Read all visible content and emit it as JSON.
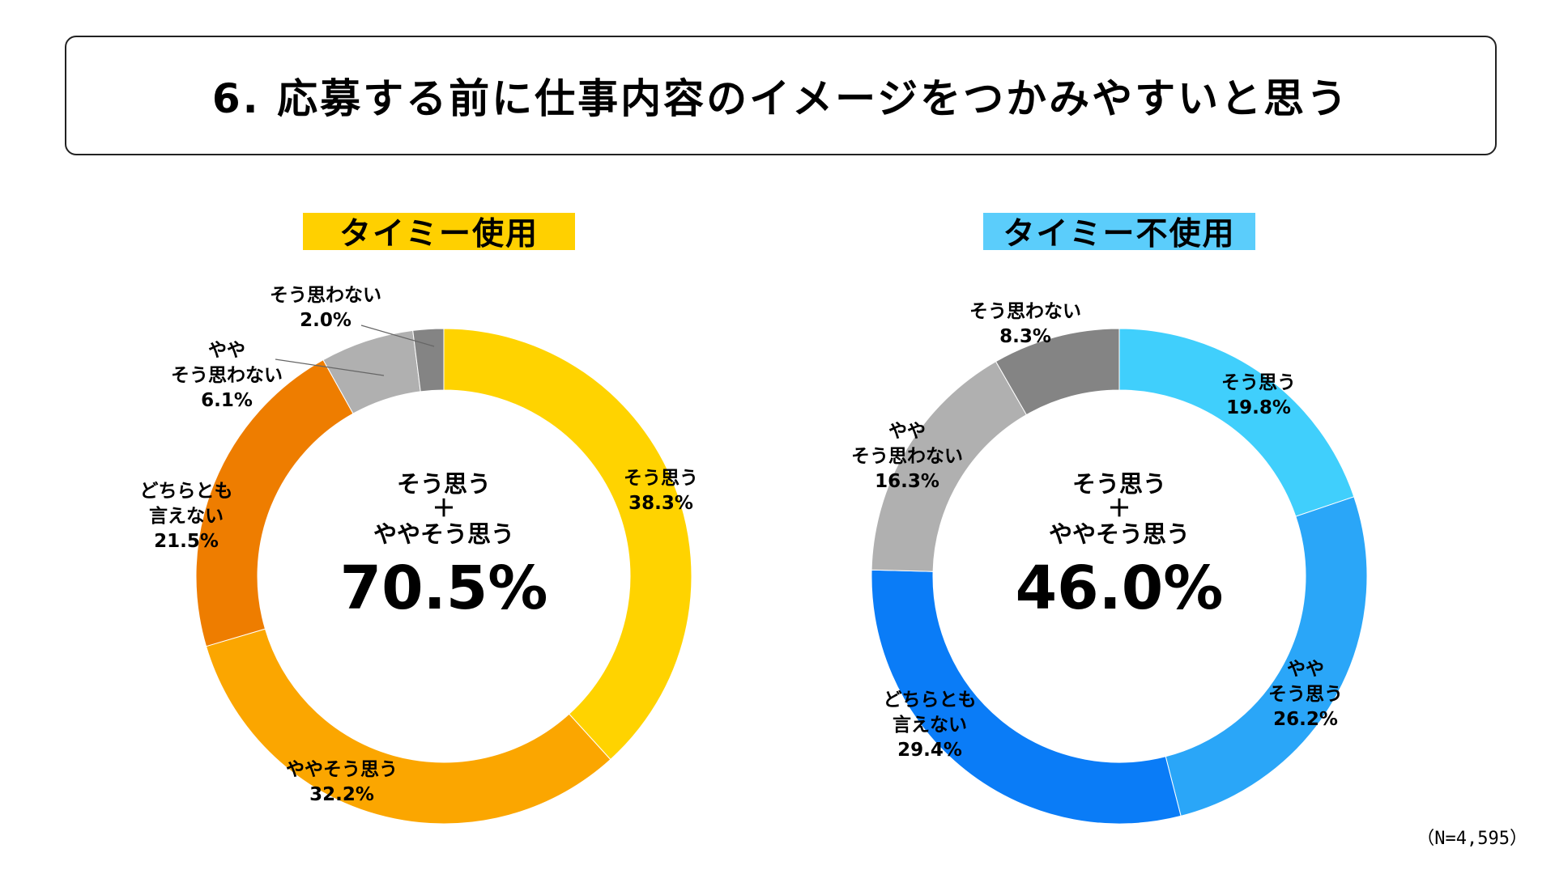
{
  "title": "6. 応募する前に仕事内容のイメージをつかみやすいと思う",
  "note": "（N=4,595）",
  "chart_data": [
    {
      "type": "pie",
      "subtype": "donut",
      "title": "タイミー使用",
      "accent": "#FFD000",
      "center": {
        "line1": "そう思う",
        "plus": "＋",
        "line2": "ややそう思う",
        "value": "70.5%"
      },
      "slices": [
        {
          "label": "そう思う",
          "value": 38.3,
          "value_text": "38.3%",
          "color": "#FFD300"
        },
        {
          "label": "ややそう思う",
          "value": 32.2,
          "value_text": "32.2%",
          "color": "#FBA600"
        },
        {
          "label": "どちらとも言えない",
          "value": 21.5,
          "value_text": "21.5%",
          "color": "#EE7D00"
        },
        {
          "label": "ややそう思わない",
          "value": 6.1,
          "value_text": "6.1%",
          "color": "#B0B0B0"
        },
        {
          "label": "そう思わない",
          "value": 2.0,
          "value_text": "2.0%",
          "color": "#848484"
        }
      ]
    },
    {
      "type": "pie",
      "subtype": "donut",
      "title": "タイミー不使用",
      "accent": "#5BCDFB",
      "center": {
        "line1": "そう思う",
        "plus": "＋",
        "line2": "ややそう思う",
        "value": "46.0%"
      },
      "slices": [
        {
          "label": "そう思う",
          "value": 19.8,
          "value_text": "19.8%",
          "color": "#40CFFC"
        },
        {
          "label": "ややそう思う",
          "value": 26.2,
          "value_text": "26.2%",
          "color": "#2AA6F8"
        },
        {
          "label": "どちらとも言えない",
          "value": 29.4,
          "value_text": "29.4%",
          "color": "#0A7CF7"
        },
        {
          "label": "ややそう思わない",
          "value": 16.3,
          "value_text": "16.3%",
          "color": "#B0B0B0"
        },
        {
          "label": "そう思わない",
          "value": 8.3,
          "value_text": "8.3%",
          "color": "#848484"
        }
      ]
    }
  ]
}
